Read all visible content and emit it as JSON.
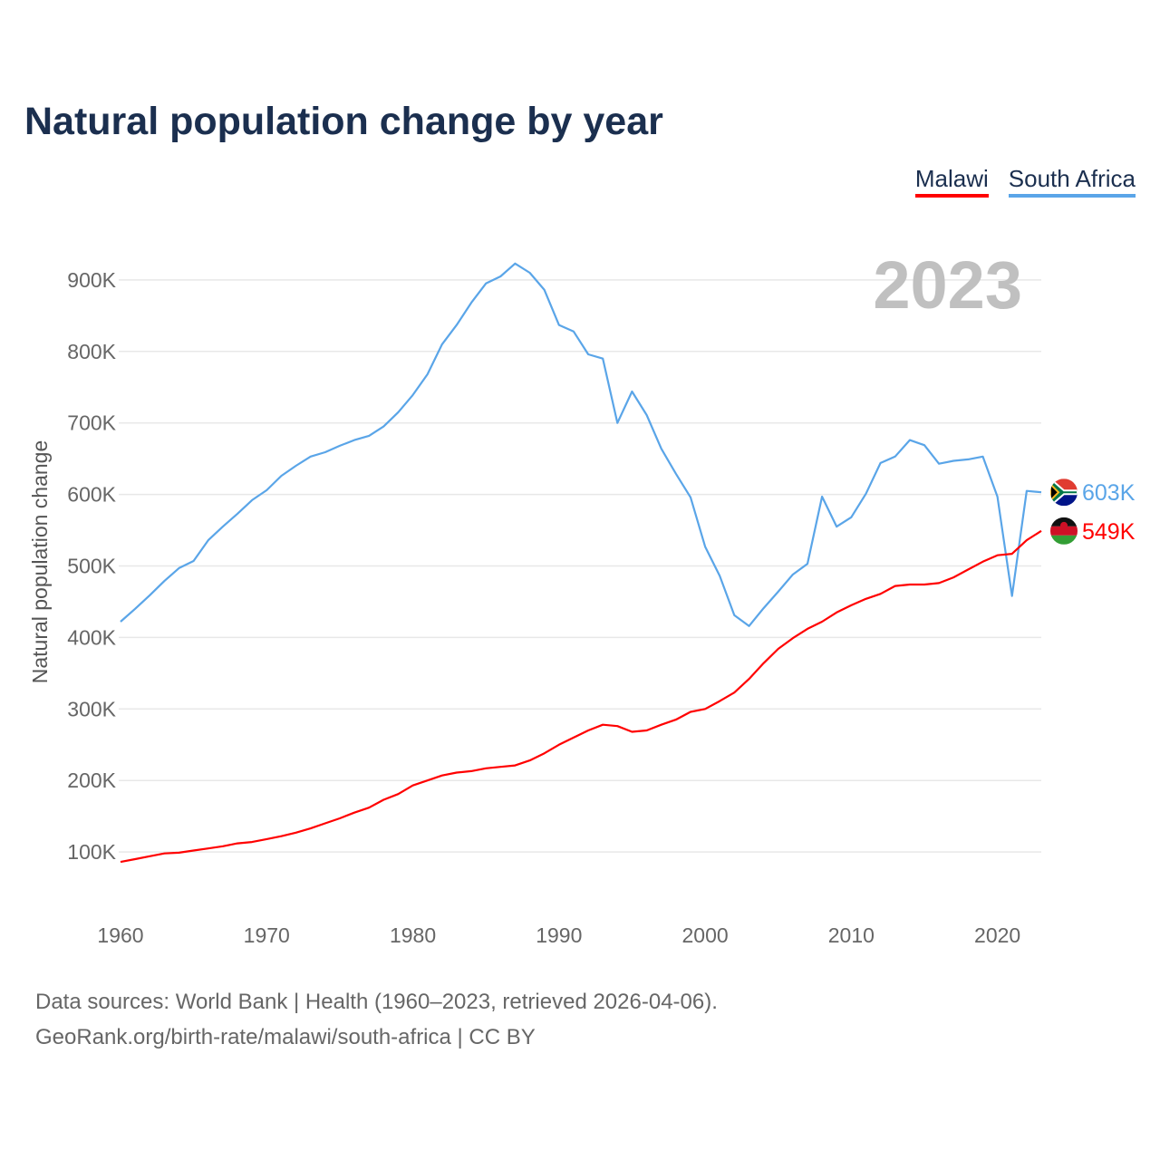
{
  "title": "Natural population change by year",
  "footer": {
    "line1": "Data sources: World Bank | Health (1960–2023, retrieved 2026-04-06).",
    "line2": "GeoRank.org/birth-rate/malawi/south-africa | CC BY"
  },
  "chart_data": {
    "type": "line",
    "title": "Natural population change by year",
    "xlabel": "",
    "ylabel": "Natural population change",
    "year_watermark": "2023",
    "x_start": 1960,
    "x_end": 2023,
    "xlim": [
      1960,
      2023
    ],
    "ylim": [
      0,
      1000000
    ],
    "xticks": [
      "1960",
      "1970",
      "1980",
      "1990",
      "2000",
      "2010",
      "2020"
    ],
    "yticks": [
      {
        "value": 100000,
        "label": "100K"
      },
      {
        "value": 200000,
        "label": "200K"
      },
      {
        "value": 300000,
        "label": "300K"
      },
      {
        "value": 400000,
        "label": "400K"
      },
      {
        "value": 500000,
        "label": "500K"
      },
      {
        "value": 600000,
        "label": "600K"
      },
      {
        "value": 700000,
        "label": "700K"
      },
      {
        "value": 800000,
        "label": "800K"
      },
      {
        "value": 900000,
        "label": "900K"
      }
    ],
    "grid": true,
    "legend": "top-right",
    "series": [
      {
        "name": "Malawi",
        "color": "#ff0000",
        "end_label": "549K",
        "flag": "malawi-flag",
        "values_k": [
          86,
          90,
          94,
          98,
          99,
          102,
          105,
          108,
          112,
          114,
          118,
          122,
          127,
          133,
          140,
          147,
          155,
          162,
          173,
          181,
          193,
          200,
          207,
          211,
          213,
          217,
          219,
          221,
          228,
          238,
          250,
          260,
          270,
          278,
          276,
          268,
          270,
          278,
          285,
          296,
          300,
          311,
          323,
          342,
          364,
          384,
          399,
          412,
          422,
          435,
          445,
          454,
          461,
          472,
          474,
          474,
          476,
          484,
          495,
          506,
          515,
          517,
          536,
          549
        ]
      },
      {
        "name": "South Africa",
        "color": "#5aa5e8",
        "end_label": "603K",
        "flag": "south-africa-flag",
        "values_k": [
          422,
          440,
          459,
          479,
          497,
          507,
          536,
          555,
          573,
          592,
          606,
          626,
          640,
          653,
          659,
          668,
          676,
          682,
          695,
          715,
          739,
          768,
          810,
          837,
          868,
          895,
          905,
          923,
          910,
          886,
          837,
          828,
          796,
          790,
          700,
          744,
          711,
          664,
          629,
          596,
          527,
          486,
          431,
          416,
          441,
          464,
          488,
          503,
          597,
          555,
          568,
          601,
          644,
          653,
          676,
          669,
          643,
          647,
          649,
          653,
          597,
          458,
          605,
          603
        ]
      }
    ]
  }
}
